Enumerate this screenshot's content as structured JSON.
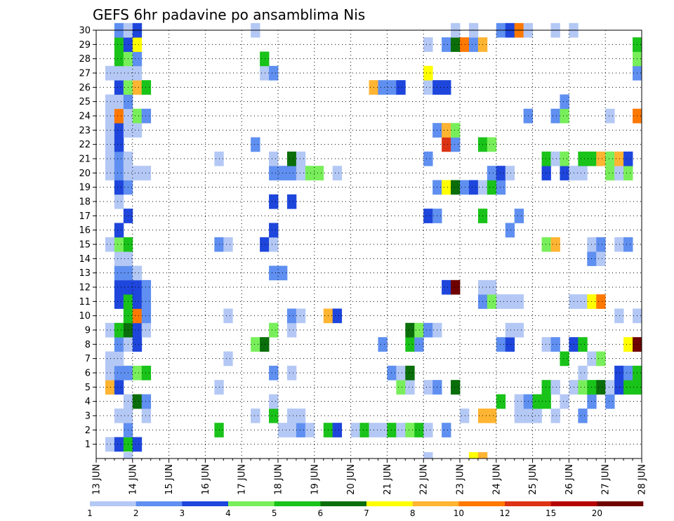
{
  "chart_data": {
    "type": "heatmap",
    "title": "GEFS 6hr padavine po ansamblima Nis",
    "grid": true,
    "x_ticks": [
      "13 JUN",
      "14 JUN",
      "15 JUN",
      "16 JUN",
      "17 JUN",
      "18 JUN",
      "19 JUN",
      "20 JUN",
      "21 JUN",
      "22 JUN",
      "23 JUN",
      "24 JUN",
      "25 JUN",
      "26 JUN",
      "27 JUN",
      "28 JUN"
    ],
    "y_ticks": [
      1,
      2,
      3,
      4,
      5,
      6,
      7,
      8,
      9,
      10,
      11,
      12,
      13,
      14,
      15,
      16,
      17,
      18,
      19,
      20,
      21,
      22,
      23,
      24,
      25,
      26,
      27,
      28,
      29,
      30
    ],
    "x_range": [
      0,
      60
    ],
    "y_range": [
      0,
      30
    ],
    "color_levels": [
      1,
      2,
      3,
      4,
      5,
      6,
      7,
      8,
      10,
      12,
      15,
      20
    ],
    "colorbar_labels": [
      "1",
      "2",
      "3",
      "4",
      "5",
      "6",
      "7",
      "8",
      "10",
      "12",
      "15",
      "20"
    ],
    "colors": [
      "#b4c8f5",
      "#5f8ff0",
      "#1e46dc",
      "#78ef5a",
      "#19c319",
      "#0a6e0a",
      "#ffff00",
      "#ffb432",
      "#ff7800",
      "#dc3214",
      "#b40000",
      "#6e0000"
    ],
    "cells": [
      [
        1,
        1,
        0
      ],
      [
        1,
        2,
        2
      ],
      [
        1,
        3,
        4
      ],
      [
        1,
        4,
        2
      ],
      [
        2,
        3,
        1
      ],
      [
        2,
        13,
        4
      ],
      [
        2,
        20,
        0
      ],
      [
        2,
        21,
        0
      ],
      [
        2,
        22,
        1
      ],
      [
        2,
        23,
        0
      ],
      [
        2,
        25,
        4
      ],
      [
        2,
        26,
        2
      ],
      [
        2,
        28,
        0
      ],
      [
        2,
        29,
        4
      ],
      [
        2,
        30,
        0
      ],
      [
        2,
        31,
        0
      ],
      [
        2,
        32,
        4
      ],
      [
        2,
        33,
        0
      ],
      [
        2,
        34,
        3
      ],
      [
        2,
        35,
        4
      ],
      [
        2,
        36,
        0
      ],
      [
        2,
        38,
        1
      ],
      [
        3,
        2,
        0
      ],
      [
        3,
        3,
        0
      ],
      [
        3,
        5,
        0
      ],
      [
        3,
        17,
        0
      ],
      [
        3,
        19,
        4
      ],
      [
        3,
        21,
        0
      ],
      [
        3,
        22,
        0
      ],
      [
        3,
        40,
        0
      ],
      [
        3,
        42,
        7
      ],
      [
        3,
        43,
        7
      ],
      [
        3,
        46,
        0
      ],
      [
        3,
        47,
        0
      ],
      [
        3,
        48,
        0
      ],
      [
        3,
        50,
        0
      ],
      [
        3,
        53,
        1
      ],
      [
        4,
        3,
        0
      ],
      [
        4,
        4,
        5
      ],
      [
        4,
        5,
        1
      ],
      [
        4,
        19,
        0
      ],
      [
        4,
        44,
        4
      ],
      [
        4,
        46,
        0
      ],
      [
        4,
        47,
        1
      ],
      [
        4,
        48,
        4
      ],
      [
        4,
        49,
        4
      ],
      [
        4,
        51,
        0
      ],
      [
        4,
        54,
        1
      ],
      [
        4,
        56,
        1
      ],
      [
        5,
        1,
        7
      ],
      [
        5,
        2,
        2
      ],
      [
        5,
        13,
        0
      ],
      [
        5,
        33,
        3
      ],
      [
        5,
        34,
        0
      ],
      [
        5,
        36,
        0
      ],
      [
        5,
        37,
        1
      ],
      [
        5,
        39,
        5
      ],
      [
        5,
        49,
        4
      ],
      [
        5,
        50,
        0
      ],
      [
        5,
        52,
        0
      ],
      [
        5,
        53,
        3
      ],
      [
        5,
        54,
        4
      ],
      [
        5,
        55,
        5
      ],
      [
        5,
        56,
        0
      ],
      [
        5,
        57,
        2
      ],
      [
        5,
        58,
        4
      ],
      [
        5,
        59,
        4
      ],
      [
        6,
        1,
        0
      ],
      [
        6,
        2,
        1
      ],
      [
        6,
        3,
        1
      ],
      [
        6,
        4,
        3
      ],
      [
        6,
        5,
        4
      ],
      [
        6,
        19,
        1
      ],
      [
        6,
        21,
        0
      ],
      [
        6,
        32,
        1
      ],
      [
        6,
        33,
        0
      ],
      [
        6,
        34,
        5
      ],
      [
        6,
        53,
        0
      ],
      [
        6,
        57,
        2
      ],
      [
        6,
        58,
        1
      ],
      [
        6,
        59,
        4
      ],
      [
        7,
        1,
        0
      ],
      [
        7,
        2,
        0
      ],
      [
        7,
        14,
        0
      ],
      [
        7,
        51,
        4
      ],
      [
        7,
        54,
        0
      ],
      [
        7,
        55,
        3
      ],
      [
        8,
        2,
        1
      ],
      [
        8,
        3,
        0
      ],
      [
        8,
        4,
        2
      ],
      [
        8,
        17,
        3
      ],
      [
        8,
        18,
        5
      ],
      [
        8,
        31,
        1
      ],
      [
        8,
        34,
        4
      ],
      [
        8,
        35,
        1
      ],
      [
        8,
        44,
        1
      ],
      [
        8,
        45,
        2
      ],
      [
        8,
        49,
        0
      ],
      [
        8,
        50,
        1
      ],
      [
        8,
        52,
        2
      ],
      [
        8,
        53,
        4
      ],
      [
        8,
        58,
        6
      ],
      [
        8,
        59,
        11
      ],
      [
        9,
        1,
        0
      ],
      [
        9,
        2,
        4
      ],
      [
        9,
        3,
        5
      ],
      [
        9,
        4,
        2
      ],
      [
        9,
        5,
        0
      ],
      [
        9,
        19,
        3
      ],
      [
        9,
        21,
        0
      ],
      [
        9,
        34,
        5
      ],
      [
        9,
        35,
        3
      ],
      [
        9,
        36,
        1
      ],
      [
        9,
        37,
        0
      ],
      [
        9,
        45,
        0
      ],
      [
        9,
        46,
        0
      ],
      [
        10,
        3,
        4
      ],
      [
        10,
        4,
        8
      ],
      [
        10,
        5,
        1
      ],
      [
        10,
        14,
        0
      ],
      [
        10,
        21,
        1
      ],
      [
        10,
        22,
        0
      ],
      [
        10,
        25,
        7
      ],
      [
        10,
        26,
        2
      ],
      [
        10,
        57,
        0
      ],
      [
        10,
        59,
        0
      ],
      [
        11,
        2,
        2
      ],
      [
        11,
        3,
        4
      ],
      [
        11,
        4,
        2
      ],
      [
        11,
        5,
        1
      ],
      [
        11,
        42,
        1
      ],
      [
        11,
        43,
        3
      ],
      [
        11,
        44,
        0
      ],
      [
        11,
        45,
        0
      ],
      [
        11,
        46,
        0
      ],
      [
        11,
        52,
        0
      ],
      [
        11,
        53,
        0
      ],
      [
        11,
        54,
        6
      ],
      [
        11,
        55,
        8
      ],
      [
        12,
        2,
        2
      ],
      [
        12,
        3,
        2
      ],
      [
        12,
        4,
        2
      ],
      [
        12,
        5,
        1
      ],
      [
        12,
        38,
        2
      ],
      [
        12,
        39,
        11
      ],
      [
        12,
        42,
        0
      ],
      [
        12,
        43,
        0
      ],
      [
        13,
        2,
        1
      ],
      [
        13,
        3,
        1
      ],
      [
        13,
        4,
        0
      ],
      [
        13,
        19,
        1
      ],
      [
        13,
        20,
        1
      ],
      [
        14,
        2,
        0
      ],
      [
        14,
        3,
        0
      ],
      [
        14,
        54,
        1
      ],
      [
        14,
        55,
        0
      ],
      [
        15,
        1,
        0
      ],
      [
        15,
        2,
        3
      ],
      [
        15,
        3,
        4
      ],
      [
        15,
        13,
        1
      ],
      [
        15,
        14,
        0
      ],
      [
        15,
        18,
        2
      ],
      [
        15,
        19,
        0
      ],
      [
        15,
        49,
        3
      ],
      [
        15,
        50,
        7
      ],
      [
        15,
        54,
        0
      ],
      [
        15,
        55,
        1
      ],
      [
        15,
        57,
        0
      ],
      [
        15,
        58,
        1
      ],
      [
        16,
        2,
        2
      ],
      [
        16,
        19,
        2
      ],
      [
        16,
        45,
        1
      ],
      [
        17,
        3,
        2
      ],
      [
        17,
        36,
        2
      ],
      [
        17,
        37,
        1
      ],
      [
        17,
        42,
        4
      ],
      [
        17,
        46,
        1
      ],
      [
        18,
        2,
        0
      ],
      [
        18,
        19,
        2
      ],
      [
        18,
        21,
        2
      ],
      [
        19,
        2,
        2
      ],
      [
        19,
        3,
        1
      ],
      [
        19,
        37,
        1
      ],
      [
        19,
        38,
        6
      ],
      [
        19,
        39,
        5
      ],
      [
        19,
        40,
        1
      ],
      [
        19,
        41,
        2
      ],
      [
        19,
        42,
        0
      ],
      [
        19,
        43,
        4
      ],
      [
        19,
        44,
        1
      ],
      [
        20,
        1,
        0
      ],
      [
        20,
        2,
        1
      ],
      [
        20,
        3,
        0
      ],
      [
        20,
        4,
        0
      ],
      [
        20,
        5,
        0
      ],
      [
        20,
        19,
        1
      ],
      [
        20,
        20,
        1
      ],
      [
        20,
        21,
        1
      ],
      [
        20,
        22,
        0
      ],
      [
        20,
        23,
        3
      ],
      [
        20,
        24,
        3
      ],
      [
        20,
        26,
        0
      ],
      [
        20,
        43,
        1
      ],
      [
        20,
        44,
        2
      ],
      [
        20,
        45,
        0
      ],
      [
        20,
        49,
        2
      ],
      [
        20,
        51,
        2
      ],
      [
        20,
        52,
        0
      ],
      [
        20,
        53,
        0
      ],
      [
        20,
        56,
        3
      ],
      [
        20,
        57,
        0
      ],
      [
        20,
        58,
        3
      ],
      [
        21,
        1,
        0
      ],
      [
        21,
        2,
        1
      ],
      [
        21,
        3,
        0
      ],
      [
        21,
        13,
        0
      ],
      [
        21,
        19,
        0
      ],
      [
        21,
        21,
        5
      ],
      [
        21,
        22,
        0
      ],
      [
        21,
        36,
        1
      ],
      [
        21,
        49,
        4
      ],
      [
        21,
        50,
        0
      ],
      [
        21,
        51,
        3
      ],
      [
        21,
        53,
        4
      ],
      [
        21,
        54,
        4
      ],
      [
        21,
        55,
        7
      ],
      [
        21,
        56,
        3
      ],
      [
        21,
        57,
        7
      ],
      [
        21,
        58,
        2
      ],
      [
        22,
        1,
        0
      ],
      [
        22,
        2,
        2
      ],
      [
        22,
        17,
        1
      ],
      [
        22,
        38,
        9
      ],
      [
        22,
        39,
        1
      ],
      [
        22,
        42,
        4
      ],
      [
        22,
        43,
        3
      ],
      [
        23,
        1,
        0
      ],
      [
        23,
        2,
        2
      ],
      [
        23,
        3,
        0
      ],
      [
        23,
        4,
        0
      ],
      [
        23,
        37,
        1
      ],
      [
        23,
        38,
        7
      ],
      [
        23,
        39,
        3
      ],
      [
        24,
        1,
        0
      ],
      [
        24,
        2,
        8
      ],
      [
        24,
        3,
        0
      ],
      [
        24,
        4,
        3
      ],
      [
        24,
        5,
        1
      ],
      [
        24,
        47,
        1
      ],
      [
        24,
        50,
        1
      ],
      [
        24,
        51,
        3
      ],
      [
        24,
        56,
        0
      ],
      [
        24,
        59,
        8
      ],
      [
        25,
        1,
        0
      ],
      [
        25,
        2,
        0
      ],
      [
        25,
        3,
        1
      ],
      [
        25,
        51,
        1
      ],
      [
        26,
        2,
        2
      ],
      [
        26,
        3,
        3
      ],
      [
        26,
        4,
        7
      ],
      [
        26,
        5,
        4
      ],
      [
        26,
        30,
        7
      ],
      [
        26,
        31,
        1
      ],
      [
        26,
        32,
        1
      ],
      [
        26,
        33,
        2
      ],
      [
        26,
        36,
        0
      ],
      [
        26,
        37,
        2
      ],
      [
        26,
        38,
        2
      ],
      [
        27,
        1,
        0
      ],
      [
        27,
        2,
        0
      ],
      [
        27,
        3,
        0
      ],
      [
        27,
        4,
        0
      ],
      [
        27,
        18,
        0
      ],
      [
        27,
        19,
        1
      ],
      [
        27,
        36,
        6
      ],
      [
        27,
        59,
        1
      ],
      [
        28,
        2,
        4
      ],
      [
        28,
        3,
        3
      ],
      [
        28,
        4,
        1
      ],
      [
        28,
        18,
        4
      ],
      [
        28,
        59,
        3
      ],
      [
        29,
        2,
        4
      ],
      [
        29,
        3,
        2
      ],
      [
        29,
        4,
        6
      ],
      [
        29,
        36,
        0
      ],
      [
        29,
        38,
        1
      ],
      [
        29,
        39,
        5
      ],
      [
        29,
        40,
        8
      ],
      [
        29,
        41,
        1
      ],
      [
        29,
        42,
        7
      ],
      [
        29,
        59,
        4
      ],
      [
        30,
        2,
        1
      ],
      [
        30,
        3,
        0
      ],
      [
        30,
        4,
        2
      ],
      [
        30,
        17,
        0
      ],
      [
        30,
        39,
        0
      ],
      [
        30,
        41,
        0
      ],
      [
        30,
        44,
        1
      ],
      [
        30,
        45,
        2
      ],
      [
        30,
        46,
        8
      ],
      [
        30,
        47,
        0
      ],
      [
        30,
        50,
        0
      ],
      [
        30,
        52,
        0
      ]
    ],
    "partial_cells_below": [
      [
        3,
        0
      ],
      [
        36,
        0
      ],
      [
        41,
        6
      ],
      [
        42,
        7
      ]
    ]
  }
}
